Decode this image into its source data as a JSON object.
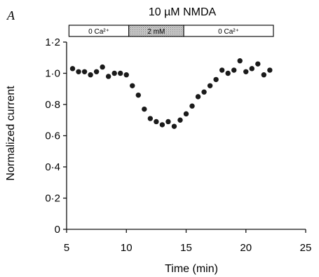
{
  "chart_data": {
    "type": "scatter",
    "panel_label": "A",
    "title": "10 µM NMDA",
    "xlabel": "Time (min)",
    "ylabel": "Normalized current",
    "xlim": [
      5,
      25
    ],
    "ylim": [
      0,
      1.2
    ],
    "x_ticks": [
      5,
      10,
      15,
      20,
      25
    ],
    "x_tick_labels": [
      "5",
      "10",
      "15",
      "20",
      "25"
    ],
    "y_ticks": [
      0,
      0.2,
      0.4,
      0.6,
      0.8,
      1.0,
      1.2
    ],
    "y_tick_labels": [
      "0",
      "0·2",
      "0·4",
      "0·6",
      "0·8",
      "1·0",
      "1·2"
    ],
    "grid": false,
    "marker_color": "#1a1a1a",
    "solution_bar": [
      {
        "label": "0 Ca²⁺",
        "start": 5.2,
        "end": 10.2,
        "shaded": false
      },
      {
        "label": "2 mM",
        "start": 10.2,
        "end": 14.8,
        "shaded": true
      },
      {
        "label": "0 Ca²⁺",
        "start": 14.8,
        "end": 22.3,
        "shaded": false
      }
    ],
    "series": [
      {
        "x": [
          5.5,
          6.0,
          6.5,
          7.0,
          7.5,
          8.0,
          8.5,
          9.0,
          9.5,
          10.0,
          10.5,
          11.0,
          11.5,
          12.0,
          12.5,
          13.0,
          13.5,
          14.0,
          14.5,
          15.0,
          15.5,
          16.0,
          16.5,
          17.0,
          17.5,
          18.0,
          18.5,
          19.0,
          19.5,
          20.0,
          20.5,
          21.0,
          21.5,
          22.0
        ],
        "y": [
          1.03,
          1.01,
          1.01,
          0.99,
          1.01,
          1.04,
          0.98,
          1.0,
          1.0,
          0.99,
          0.92,
          0.86,
          0.77,
          0.71,
          0.69,
          0.67,
          0.69,
          0.66,
          0.7,
          0.74,
          0.79,
          0.85,
          0.88,
          0.92,
          0.96,
          1.02,
          1.0,
          1.02,
          1.08,
          1.01,
          1.03,
          1.06,
          0.99,
          1.02
        ]
      }
    ]
  }
}
